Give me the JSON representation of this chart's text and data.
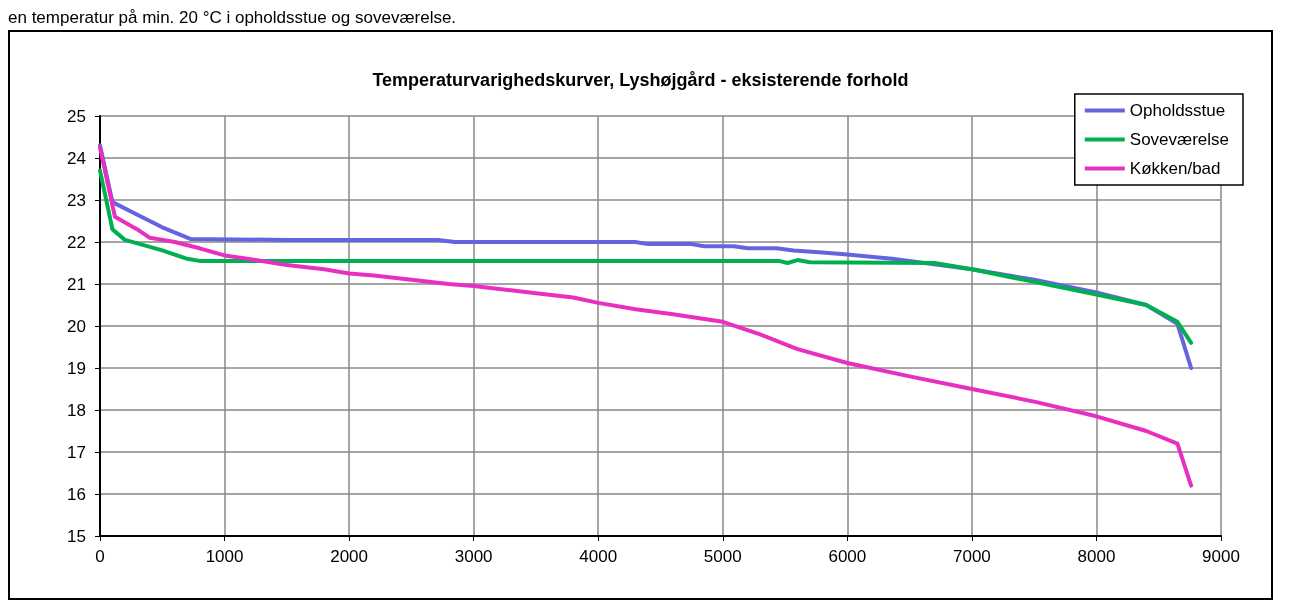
{
  "chart_data": {
    "type": "line",
    "title": "Temperaturvarighedskurver, Lyshøjgård - eksisterende forhold",
    "annotations": [
      "en temperatur på min. 20 °C i opholdsstue og soveværelse."
    ],
    "xlim": [
      0,
      9000
    ],
    "xticks": [
      0,
      1000,
      2000,
      3000,
      4000,
      5000,
      6000,
      7000,
      8000,
      9000
    ],
    "ylim": [
      15,
      25
    ],
    "yticks": [
      15,
      16,
      17,
      18,
      19,
      20,
      21,
      22,
      23,
      24,
      25
    ],
    "grid": true,
    "legend": "top right",
    "marker": "none",
    "line_style": "solid",
    "series": [
      {
        "name": "Opholdsstue",
        "color": "#6464e0",
        "x": [
          0,
          100,
          300,
          500,
          730,
          1500,
          2712,
          2850,
          4298,
          4400,
          4750,
          4850,
          5090,
          5200,
          5430,
          5570,
          5800,
          6000,
          6360,
          7000,
          7500,
          8000,
          8400,
          8650,
          8760
        ],
        "values": [
          24.3,
          22.95,
          22.65,
          22.35,
          22.07,
          22.05,
          22.05,
          22.0,
          22.0,
          21.95,
          21.95,
          21.9,
          21.9,
          21.85,
          21.85,
          21.8,
          21.75,
          21.7,
          21.6,
          21.35,
          21.1,
          20.8,
          20.5,
          20.05,
          19.0
        ]
      },
      {
        "name": "Soveværelse",
        "color": "#00b050",
        "x": [
          0,
          100,
          200,
          500,
          700,
          800,
          3000,
          5450,
          5520,
          5600,
          5700,
          6700,
          7000,
          7500,
          8000,
          8400,
          8650,
          8760
        ],
        "values": [
          23.7,
          22.3,
          22.05,
          21.8,
          21.6,
          21.55,
          21.55,
          21.55,
          21.5,
          21.57,
          21.52,
          21.5,
          21.35,
          21.05,
          20.75,
          20.5,
          20.1,
          19.6
        ]
      },
      {
        "name": "Køkken/bad",
        "color": "#e830c0",
        "x": [
          0,
          120,
          300,
          400,
          600,
          800,
          1000,
          1300,
          1500,
          1800,
          2000,
          2200,
          2500,
          2800,
          3000,
          3300,
          3500,
          3800,
          4000,
          4300,
          4600,
          5000,
          5300,
          5600,
          6000,
          6500,
          7000,
          7500,
          8000,
          8400,
          8650,
          8760
        ],
        "values": [
          24.25,
          22.6,
          22.3,
          22.1,
          22.0,
          21.85,
          21.68,
          21.55,
          21.45,
          21.35,
          21.25,
          21.2,
          21.1,
          21.0,
          20.95,
          20.85,
          20.78,
          20.68,
          20.55,
          20.4,
          20.28,
          20.1,
          19.8,
          19.45,
          19.12,
          18.8,
          18.5,
          18.2,
          17.85,
          17.5,
          17.2,
          16.2
        ]
      }
    ]
  }
}
